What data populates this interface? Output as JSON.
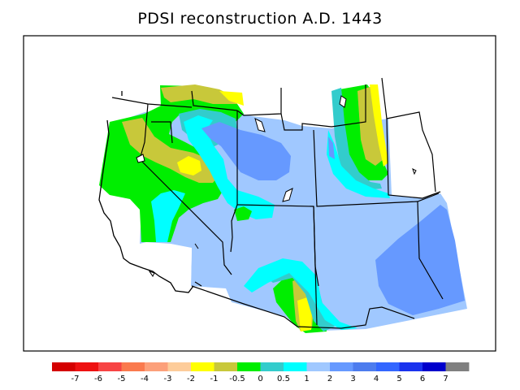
{
  "title": "PDSI reconstruction A.D. 1443",
  "legend": {
    "colors": [
      "#d40000",
      "#ee1111",
      "#f74444",
      "#fa7a4e",
      "#fca07a",
      "#fdcc9a",
      "#ffff00",
      "#c8c83a",
      "#00ee00",
      "#33cccc",
      "#00ffff",
      "#a0c8ff",
      "#6699ff",
      "#4d7cee",
      "#3366ff",
      "#1a33ee",
      "#0000cc",
      "#808080"
    ],
    "ticks": [
      "-7",
      "-6",
      "-5",
      "-4",
      "-3",
      "-2",
      "-1",
      "-0.5",
      "0",
      "0.5",
      "1",
      "2",
      "3",
      "4",
      "5",
      "6",
      "7"
    ]
  }
}
